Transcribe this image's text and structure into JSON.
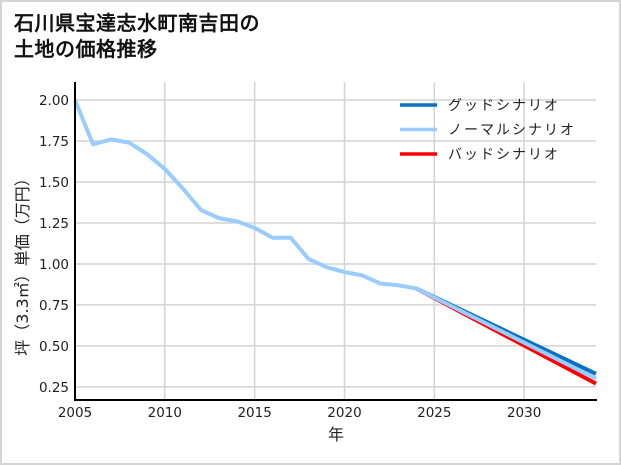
{
  "title": {
    "line1": "石川県宝達志水町南吉田の",
    "line2": "土地の価格推移"
  },
  "chart_data": {
    "type": "line",
    "title": "石川県宝達志水町南吉田の土地の価格推移",
    "xlabel": "年",
    "ylabel": "坪（3.3㎡）単価（万円）",
    "xlim": [
      2005,
      2034
    ],
    "ylim": [
      0.17,
      2.11
    ],
    "grid": true,
    "legend_position": "upper right",
    "xticks": [
      2005,
      2010,
      2015,
      2020,
      2025,
      2030
    ],
    "xtick_labels": [
      "2005",
      "2010",
      "2015",
      "2020",
      "2025",
      "2030"
    ],
    "yticks": [
      0.25,
      0.5,
      0.75,
      1.0,
      1.25,
      1.5,
      1.75,
      2.0
    ],
    "ytick_labels": [
      "0.25",
      "0.50",
      "0.75",
      "1.00",
      "1.25",
      "1.50",
      "1.75",
      "2.00"
    ],
    "series": [
      {
        "name": "グッドシナリオ",
        "color": "#0a70c4",
        "x": [
          2024,
          2034
        ],
        "values": [
          0.85,
          0.33
        ]
      },
      {
        "name": "ノーマルシナリオ",
        "color": "#99ccff",
        "x": [
          2005,
          2006,
          2007,
          2008,
          2009,
          2010,
          2011,
          2012,
          2013,
          2014,
          2015,
          2016,
          2017,
          2018,
          2019,
          2020,
          2021,
          2022,
          2023,
          2024,
          2034
        ],
        "values": [
          2.0,
          1.73,
          1.76,
          1.74,
          1.67,
          1.58,
          1.46,
          1.33,
          1.28,
          1.26,
          1.22,
          1.16,
          1.16,
          1.03,
          0.98,
          0.95,
          0.93,
          0.88,
          0.87,
          0.85,
          0.3
        ]
      },
      {
        "name": "バッドシナリオ",
        "color": "#ff0000",
        "x": [
          2024,
          2034
        ],
        "values": [
          0.85,
          0.27
        ]
      }
    ],
    "draw_order": [
      2,
      0,
      1
    ]
  },
  "colors": {
    "grid": "#d3d3d3",
    "axis": "#000000",
    "frame": "#d4d4d4"
  }
}
